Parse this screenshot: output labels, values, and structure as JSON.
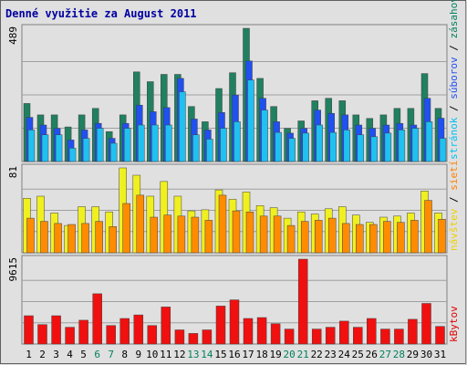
{
  "chart_data": {
    "type": "bar",
    "title": "Denné využitie za August 2011",
    "colors": {
      "background": "#e0e0e0",
      "plot_bg": "#e0e0e0",
      "axis": "#808080",
      "grid": "#a0a0a0",
      "title": "#0000a0",
      "weekday": "#000000",
      "weekend": "#00805c"
    },
    "categories": [
      "1",
      "2",
      "3",
      "4",
      "5",
      "6",
      "7",
      "8",
      "9",
      "10",
      "11",
      "12",
      "13",
      "14",
      "15",
      "16",
      "17",
      "18",
      "19",
      "20",
      "21",
      "22",
      "23",
      "24",
      "25",
      "26",
      "27",
      "28",
      "29",
      "30",
      "31"
    ],
    "weekend_days": [
      "6",
      "7",
      "13",
      "14",
      "20",
      "21",
      "27",
      "28"
    ],
    "panels": [
      {
        "ymax_label": "489",
        "ymax": 489,
        "legend": [
          {
            "text": "stránok",
            "color": "#00c0f0"
          },
          {
            "text": " / ",
            "color": "#000000"
          },
          {
            "text": "súborov",
            "color": "#2050f0"
          },
          {
            "text": " / ",
            "color": "#000000"
          },
          {
            "text": "zásahov",
            "color": "#00805c"
          }
        ],
        "series": [
          {
            "name": "zásahov",
            "color": "#208060",
            "values": [
              213,
              171,
              171,
              127,
              171,
              195,
              110,
              171,
              329,
              293,
              320,
              320,
              202,
              146,
              268,
              326,
              489,
              305,
              202,
              122,
              149,
              223,
              232,
              223,
              171,
              158,
              171,
              195,
              195,
              323,
              195
            ]
          },
          {
            "name": "súborov",
            "color": "#2050f0",
            "values": [
              162,
              134,
              122,
              79,
              116,
              140,
              85,
              140,
              207,
              183,
              198,
              305,
              156,
              116,
              180,
              244,
              369,
              232,
              146,
              104,
              122,
              189,
              177,
              171,
              134,
              122,
              134,
              140,
              134,
              232,
              159
            ]
          },
          {
            "name": "stránok",
            "color": "#20c0f0",
            "values": [
              116,
              98,
              98,
              49,
              85,
              122,
              67,
              122,
              134,
              134,
              134,
              256,
              98,
              82,
              122,
              146,
              299,
              189,
              107,
              85,
              104,
              134,
              107,
              116,
              98,
              91,
              104,
              116,
              122,
              146,
              85
            ]
          }
        ]
      },
      {
        "ymax_label": "81",
        "ymax": 81,
        "legend": [
          {
            "text": "návštev",
            "color": "#f0d000"
          },
          {
            "text": " / ",
            "color": "#000000"
          },
          {
            "text": "sietí",
            "color": "#ff8000"
          }
        ],
        "series": [
          {
            "name": "návštev",
            "color": "#f0f020",
            "values": [
              52,
              54,
              38,
              26,
              44,
              44,
              39,
              81,
              74,
              54,
              68,
              54,
              40,
              41,
              60,
              51,
              58,
              45,
              43,
              33,
              39,
              37,
              42,
              44,
              36,
              29,
              34,
              35,
              38,
              59,
              38
            ]
          },
          {
            "name": "sietí",
            "color": "#ff8c00",
            "values": [
              33,
              30,
              28,
              27,
              28,
              30,
              25,
              47,
              55,
              34,
              36,
              35,
              34,
              31,
              55,
              40,
              39,
              35,
              35,
              26,
              30,
              31,
              33,
              28,
              27,
              27,
              30,
              29,
              31,
              50,
              32
            ]
          }
        ]
      },
      {
        "ymax_label": "9615",
        "ymax": 9615,
        "legend": [
          {
            "text": "kBytov",
            "color": "#e00000"
          }
        ],
        "series": [
          {
            "name": "kBytov",
            "color": "#f01010",
            "values": [
              3200,
              2200,
              3200,
              1900,
              2700,
              5700,
              2100,
              2900,
              3300,
              2100,
              4200,
              1600,
              1200,
              1600,
              4300,
              5000,
              2900,
              3000,
              2300,
              1700,
              9615,
              1700,
              1900,
              2600,
              1900,
              2900,
              1700,
              1700,
              2800,
              4600,
              2000
            ]
          }
        ]
      }
    ]
  }
}
